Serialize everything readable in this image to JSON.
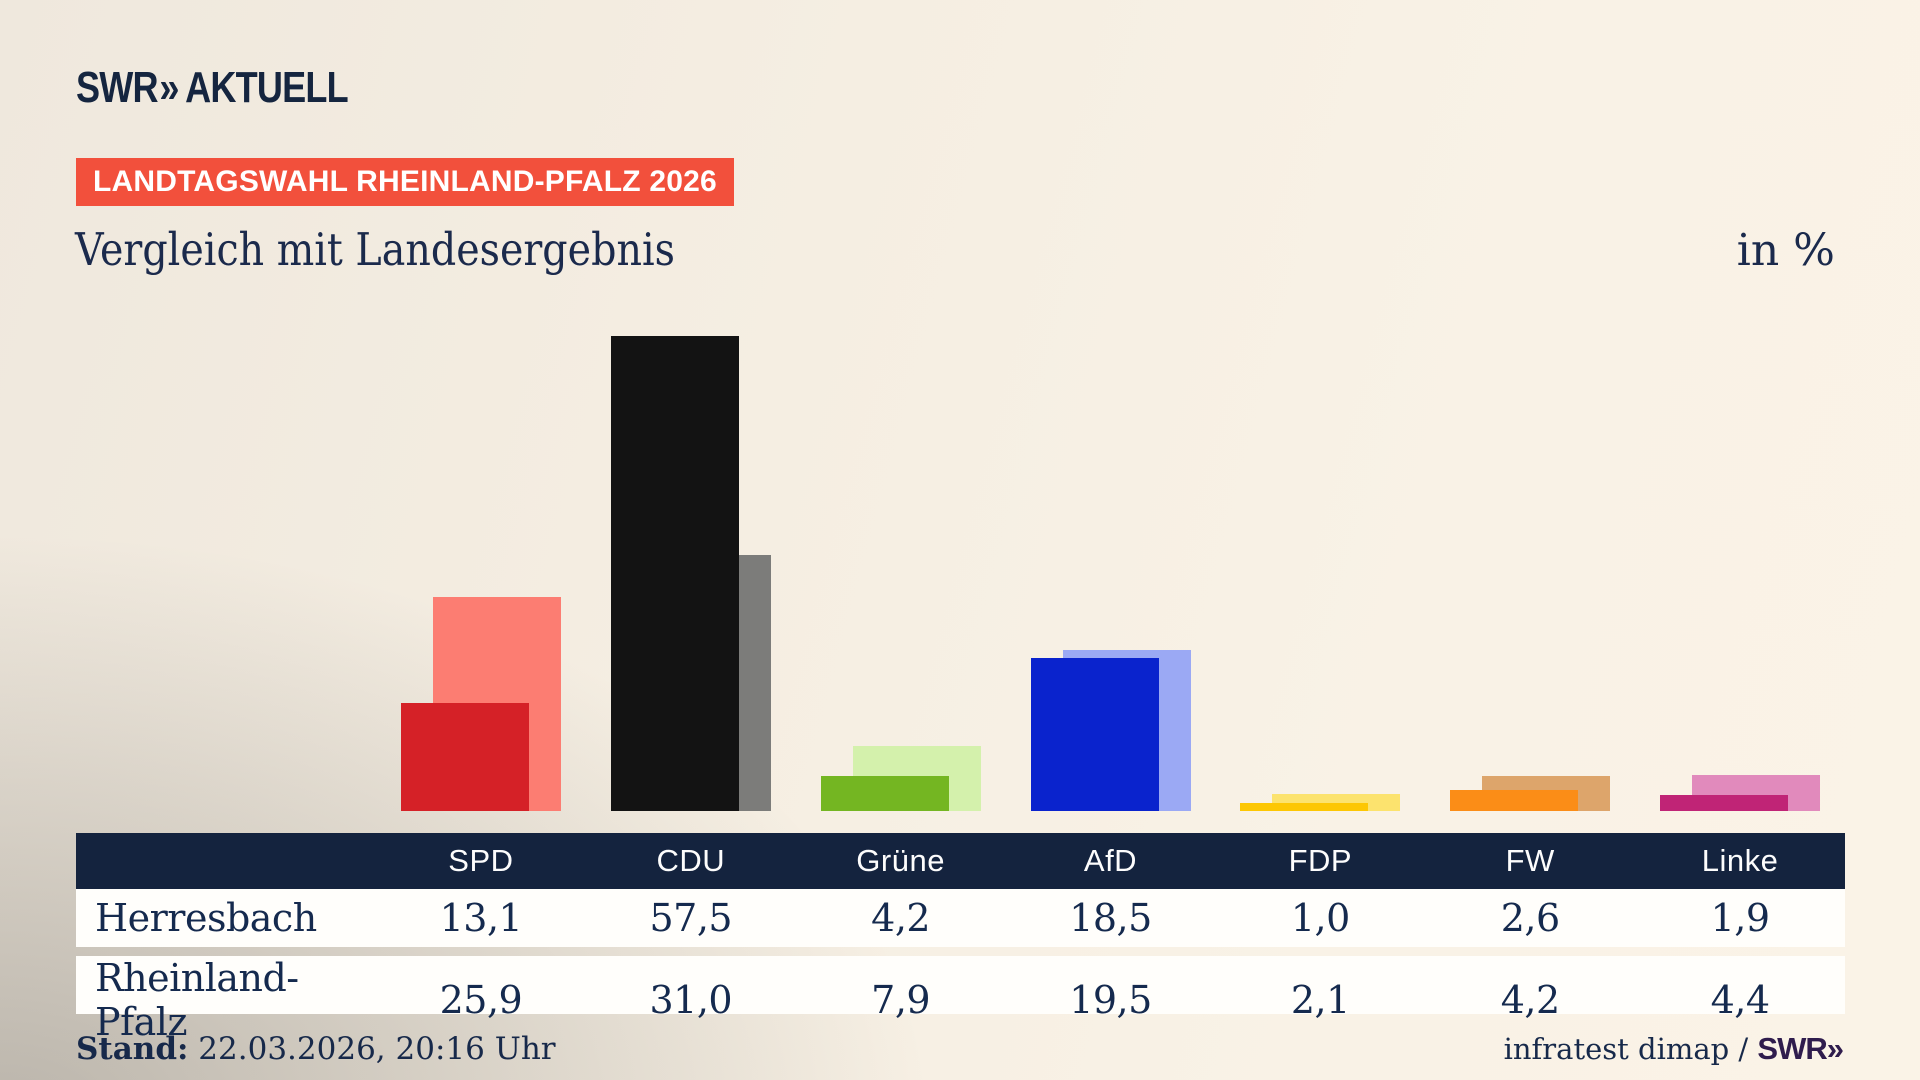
{
  "brand": {
    "logo_swr": "SWR",
    "logo_chevrons": "»",
    "logo_suffix": "AKTUELL"
  },
  "badge": {
    "label": "LANDTAGSWAHL RHEINLAND-PFALZ 2026",
    "bg_color": "#f2503c",
    "text_color": "#ffffff"
  },
  "title": "Vergleich mit Landesergebnis",
  "unit_label": "in %",
  "chart_data": {
    "type": "bar",
    "title": "Vergleich mit Landesergebnis",
    "unit": "%",
    "categories": [
      "SPD",
      "CDU",
      "Grüne",
      "AfD",
      "FDP",
      "FW",
      "Linke"
    ],
    "series": [
      {
        "name": "Herresbach",
        "role": "foreground",
        "values": [
          13.1,
          57.5,
          4.2,
          18.5,
          1.0,
          2.6,
          1.9
        ]
      },
      {
        "name": "Rheinland-Pfalz",
        "role": "background",
        "values": [
          25.9,
          31.0,
          7.9,
          19.5,
          2.1,
          4.2,
          4.4
        ]
      }
    ],
    "colors": {
      "SPD": {
        "herresbach": "#d52127",
        "land": "#fc7d72"
      },
      "CDU": {
        "herresbach": "#131313",
        "land": "#7c7c7a"
      },
      "Grüne": {
        "herresbach": "#74b622",
        "land": "#d4f1ac"
      },
      "AfD": {
        "herresbach": "#0a23cd",
        "land": "#9ba9f4"
      },
      "FDP": {
        "herresbach": "#fdc703",
        "land": "#fce36e"
      },
      "FW": {
        "herresbach": "#fb8d17",
        "land": "#dda56b"
      },
      "Linke": {
        "herresbach": "#c02476",
        "land": "#e18abc"
      }
    },
    "ylim": [
      0,
      60
    ],
    "grid": false,
    "legend": "none (labels in table below)"
  },
  "table": {
    "header_bg": "#14233e",
    "columns": [
      "",
      "SPD",
      "CDU",
      "Grüne",
      "AfD",
      "FDP",
      "FW",
      "Linke"
    ],
    "rows": [
      {
        "label": "Herresbach",
        "values": [
          "13,1",
          "57,5",
          "4,2",
          "18,5",
          "1,0",
          "2,6",
          "1,9"
        ]
      },
      {
        "label": "Rheinland-Pfalz",
        "values": [
          "25,9",
          "31,0",
          "7,9",
          "19,5",
          "2,1",
          "4,2",
          "4,4"
        ]
      }
    ]
  },
  "footer": {
    "stand_label": "Stand:",
    "stand_value": " 22.03.2026, 20:16 Uhr",
    "source_text": "infratest dimap / ",
    "source_brand": "SWR»"
  }
}
